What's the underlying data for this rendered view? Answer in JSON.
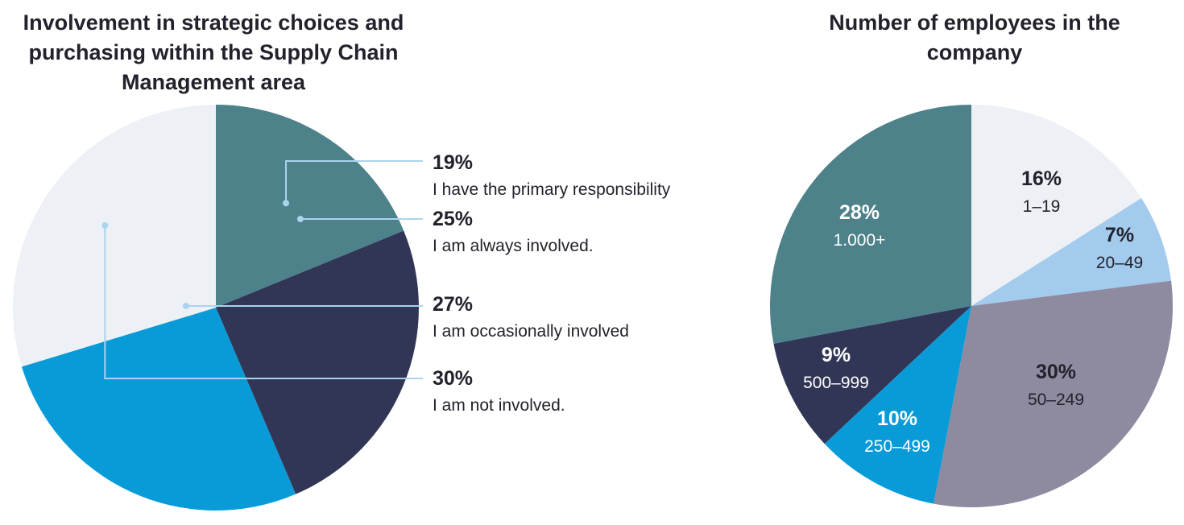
{
  "chart_data": [
    {
      "type": "pie",
      "title": "Involvement in strategic choices and purchasing within the Supply Chain Management area",
      "slices": [
        {
          "pct": "19%",
          "value": 19,
          "label": "I have the primary responsibility",
          "color": "#4d828a"
        },
        {
          "pct": "25%",
          "value": 25,
          "label": "I am always involved.",
          "color": "#313656"
        },
        {
          "pct": "27%",
          "value": 27,
          "label": "I am occasionally involved",
          "color": "#089bd8"
        },
        {
          "pct": "30%",
          "value": 30,
          "label": "I am not involved.",
          "color": "#edf0f4"
        }
      ]
    },
    {
      "type": "pie",
      "title": "Number of employees in the company",
      "slices": [
        {
          "pct": "16%",
          "value": 16,
          "label": "1–19",
          "color": "#edf0f4",
          "text_color": "#22222c"
        },
        {
          "pct": "7%",
          "value": 7,
          "label": "20–49",
          "color": "#a3cbee",
          "text_color": "#22222c"
        },
        {
          "pct": "30%",
          "value": 30,
          "label": "50–249",
          "color": "#8e8aa0",
          "text_color": "#22222c"
        },
        {
          "pct": "10%",
          "value": 10,
          "label": "250–499",
          "color": "#089bd8",
          "text_color": "#ffffff"
        },
        {
          "pct": "9%",
          "value": 9,
          "label": "500–999",
          "color": "#313656",
          "text_color": "#ffffff"
        },
        {
          "pct": "28%",
          "value": 28,
          "label": "1.000+",
          "color": "#4d828a",
          "text_color": "#ffffff"
        }
      ]
    }
  ]
}
